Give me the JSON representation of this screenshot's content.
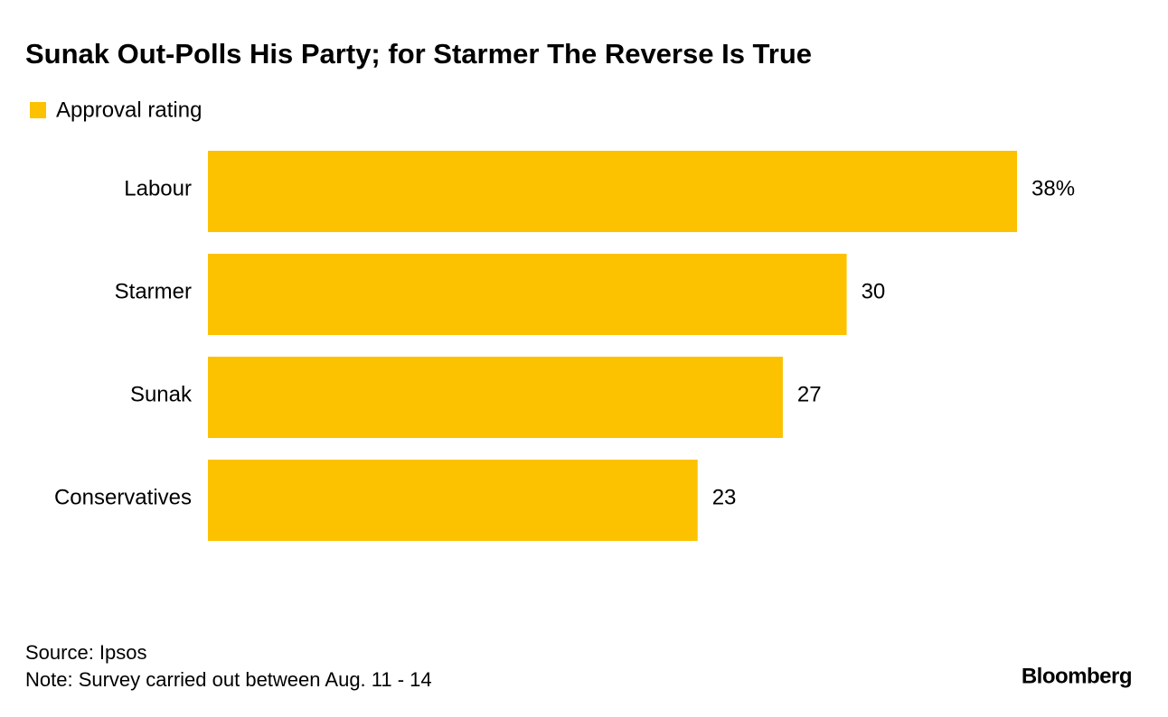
{
  "chart_data": {
    "type": "bar",
    "orientation": "horizontal",
    "title": "Sunak Out-Polls His Party; for Starmer The Reverse Is True",
    "categories": [
      "Labour",
      "Starmer",
      "Sunak",
      "Conservatives"
    ],
    "series": [
      {
        "name": "Approval rating",
        "color": "#fcc200",
        "values": [
          38,
          30,
          27,
          23
        ],
        "value_labels": [
          "38%",
          "30",
          "27",
          "23"
        ]
      }
    ],
    "legend": "top-left",
    "source": "Source: Ipsos",
    "note": "Note: Survey carried out between Aug. 11 - 14"
  },
  "brand": "Bloomberg"
}
